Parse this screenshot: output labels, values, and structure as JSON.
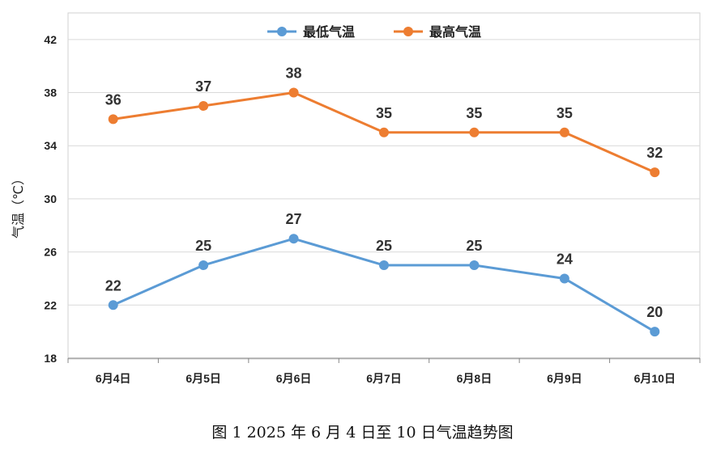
{
  "caption": "图 1 2025 年 6 月 4 日至 10 日气温趋势图",
  "chart_data": {
    "type": "line",
    "title": "",
    "xlabel": "",
    "ylabel": "气温（℃）",
    "categories": [
      "6月4日",
      "6月5日",
      "6月6日",
      "6月7日",
      "6月8日",
      "6月9日",
      "6月10日"
    ],
    "ylim": [
      18,
      44
    ],
    "yticks": [
      18,
      22,
      26,
      30,
      34,
      38,
      42
    ],
    "grid": true,
    "legend_position": "top",
    "series": [
      {
        "name": "最低气温",
        "color": "#5b9bd5",
        "values": [
          22,
          25,
          27,
          25,
          25,
          24,
          20
        ]
      },
      {
        "name": "最高气温",
        "color": "#ed7d31",
        "values": [
          36,
          37,
          38,
          35,
          35,
          35,
          32
        ]
      }
    ]
  }
}
